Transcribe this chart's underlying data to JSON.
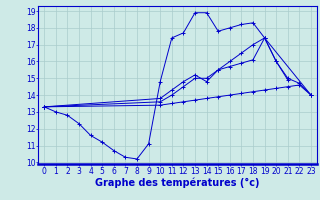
{
  "background_color": "#ceeae7",
  "grid_color": "#aacccc",
  "line_color": "#0000cc",
  "xlabel": "Graphe des températures (°c)",
  "xlabel_fontsize": 7,
  "tick_fontsize": 5.5,
  "ylim": [
    10,
    19
  ],
  "xlim": [
    -0.5,
    23.5
  ],
  "yticks": [
    10,
    11,
    12,
    13,
    14,
    15,
    16,
    17,
    18,
    19
  ],
  "xticks": [
    0,
    1,
    2,
    3,
    4,
    5,
    6,
    7,
    8,
    9,
    10,
    11,
    12,
    13,
    14,
    15,
    16,
    17,
    18,
    19,
    20,
    21,
    22,
    23
  ],
  "series": [
    {
      "x": [
        0,
        1,
        2,
        3,
        4,
        5,
        6,
        7,
        8,
        9,
        10,
        11,
        12,
        13,
        14,
        15,
        16,
        17,
        18,
        19,
        20,
        21
      ],
      "y": [
        13.3,
        13.0,
        12.8,
        12.3,
        11.6,
        11.2,
        10.7,
        10.3,
        10.2,
        11.1,
        14.8,
        17.4,
        17.7,
        18.9,
        18.9,
        17.8,
        18.0,
        18.2,
        18.3,
        17.4,
        16.0,
        14.9
      ]
    },
    {
      "x": [
        0,
        10,
        11,
        12,
        13,
        14,
        15,
        16,
        17,
        18,
        19,
        20,
        21,
        22,
        23
      ],
      "y": [
        13.3,
        13.4,
        13.5,
        13.6,
        13.7,
        13.8,
        13.9,
        14.0,
        14.1,
        14.2,
        14.3,
        14.4,
        14.5,
        14.6,
        14.0
      ]
    },
    {
      "x": [
        0,
        10,
        11,
        12,
        13,
        14,
        15,
        16,
        17,
        18,
        19,
        23
      ],
      "y": [
        13.3,
        13.6,
        14.0,
        14.5,
        15.0,
        15.0,
        15.5,
        15.7,
        15.9,
        16.1,
        17.4,
        14.0
      ]
    },
    {
      "x": [
        0,
        10,
        11,
        12,
        13,
        14,
        15,
        16,
        17,
        18,
        19,
        20,
        21,
        22,
        23
      ],
      "y": [
        13.3,
        13.8,
        14.3,
        14.8,
        15.2,
        14.8,
        15.5,
        16.0,
        16.5,
        17.0,
        17.4,
        16.0,
        15.0,
        14.7,
        14.0
      ]
    }
  ]
}
